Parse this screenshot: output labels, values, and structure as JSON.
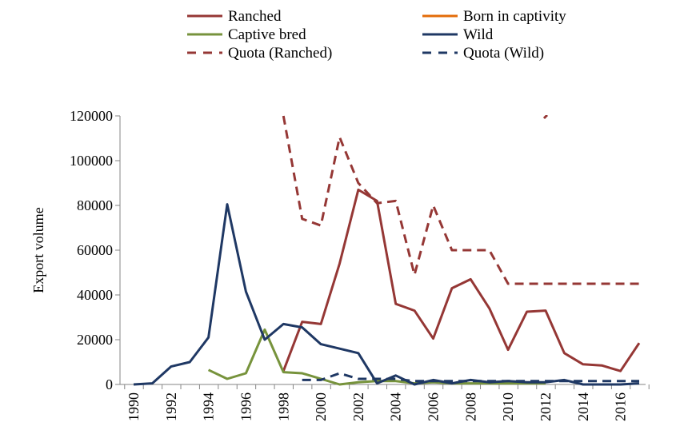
{
  "chart_data": {
    "type": "line",
    "title": "",
    "xlabel": "",
    "ylabel": "Export volume",
    "xlim": [
      1990,
      2017
    ],
    "ylim": [
      0,
      120000
    ],
    "yticks": [
      0,
      20000,
      40000,
      60000,
      80000,
      100000,
      120000
    ],
    "ytick_labels": [
      "0",
      "20000",
      "40000",
      "60000",
      "80000",
      "100000",
      "120000"
    ],
    "xticks": [
      1990,
      1992,
      1994,
      1996,
      1998,
      2000,
      2002,
      2004,
      2006,
      2008,
      2010,
      2012,
      2014,
      2016
    ],
    "xtick_labels": [
      "1990",
      "1992",
      "1994",
      "1996",
      "1998",
      "2000",
      "2002",
      "2004",
      "2006",
      "2008",
      "2010",
      "2012",
      "2014",
      "2016"
    ],
    "grid": false,
    "legend_position": "top",
    "series": [
      {
        "name": "Ranched",
        "color": "#953735",
        "dash": "solid",
        "x": [
          1998,
          1999,
          2000,
          2001,
          2002,
          2003,
          2004,
          2005,
          2006,
          2007,
          2008,
          2009,
          2010,
          2011,
          2012,
          2013,
          2014,
          2015,
          2016,
          2017
        ],
        "y": [
          6000,
          28000,
          27000,
          54000,
          87000,
          82000,
          36000,
          33000,
          20500,
          43000,
          47000,
          34000,
          15500,
          32500,
          33000,
          14000,
          9000,
          8500,
          6000,
          18500
        ]
      },
      {
        "name": "Born in captivity",
        "color": "#E36C09",
        "dash": "solid",
        "x": [],
        "y": []
      },
      {
        "name": "Captive bred",
        "color": "#77933C",
        "dash": "solid",
        "x": [
          1994,
          1995,
          1996,
          1997,
          1998,
          1999,
          2001,
          2002,
          2003,
          2004,
          2005,
          2006,
          2007,
          2008,
          2009,
          2010,
          2011,
          2012
        ],
        "y": [
          6500,
          2500,
          5000,
          24500,
          5500,
          5000,
          0,
          1000,
          1500,
          1500,
          500,
          1000,
          500,
          500,
          500,
          500,
          500,
          500
        ]
      },
      {
        "name": "Wild",
        "color": "#1F3864",
        "dash": "solid",
        "x": [
          1990,
          1991,
          1992,
          1993,
          1994,
          1995,
          1996,
          1997,
          1998,
          1999,
          2000,
          2001,
          2002,
          2003,
          2004,
          2005,
          2006,
          2007,
          2008,
          2009,
          2010,
          2011,
          2012,
          2013,
          2014,
          2015,
          2016,
          2017
        ],
        "y": [
          0,
          500,
          8000,
          10000,
          21000,
          80500,
          41500,
          20000,
          27000,
          25500,
          18000,
          16000,
          14000,
          500,
          4000,
          0,
          2000,
          500,
          2000,
          1000,
          1500,
          1000,
          1000,
          2000,
          0,
          0,
          0,
          500
        ]
      },
      {
        "name": "Quota (Ranched)",
        "color": "#953735",
        "dash": "dashed",
        "x": [
          1998,
          1999,
          2000,
          2001,
          2002,
          2003,
          2004,
          2005,
          2006,
          2007,
          2008,
          2009,
          2010,
          2011,
          2012,
          2013,
          2014,
          2015,
          2016,
          2017
        ],
        "y": [
          120000,
          74000,
          71000,
          110500,
          90000,
          81000,
          82000,
          49000,
          80000,
          60000,
          60000,
          60000,
          45000,
          45000,
          45000,
          45000,
          45000,
          45000,
          45000,
          45000
        ]
      },
      {
        "name": "Quota (Wild)",
        "color": "#1F3864",
        "dash": "dashed",
        "x": [
          1999,
          2000,
          2001,
          2002,
          2003,
          2004,
          2005,
          2006,
          2007,
          2008,
          2009,
          2010,
          2011,
          2012,
          2013,
          2014,
          2015,
          2016,
          2017
        ],
        "y": [
          2000,
          2000,
          5000,
          2500,
          2500,
          2500,
          1500,
          1500,
          1500,
          1500,
          1500,
          1500,
          1500,
          1500,
          1500,
          1500,
          1500,
          1500,
          1500
        ]
      }
    ]
  }
}
